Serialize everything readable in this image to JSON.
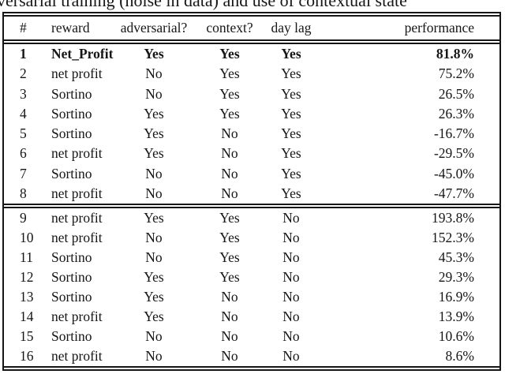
{
  "caption": {
    "visible_text": "versarial training (noise in data) and use of contextual state"
  },
  "table": {
    "headers": {
      "num": "#",
      "reward": "reward",
      "adversarial": "adversarial?",
      "context": "context?",
      "day_lag": "day lag",
      "performance": "performance"
    },
    "rows": [
      {
        "num": "1",
        "reward": "Net_Profit",
        "adversarial": "Yes",
        "context": "Yes",
        "day_lag": "Yes",
        "performance": "81.8%"
      },
      {
        "num": "2",
        "reward": "net profit",
        "adversarial": "No",
        "context": "Yes",
        "day_lag": "Yes",
        "performance": "75.2%"
      },
      {
        "num": "3",
        "reward": "Sortino",
        "adversarial": "No",
        "context": "Yes",
        "day_lag": "Yes",
        "performance": "26.5%"
      },
      {
        "num": "4",
        "reward": "Sortino",
        "adversarial": "Yes",
        "context": "Yes",
        "day_lag": "Yes",
        "performance": "26.3%"
      },
      {
        "num": "5",
        "reward": "Sortino",
        "adversarial": "Yes",
        "context": "No",
        "day_lag": "Yes",
        "performance": "-16.7%"
      },
      {
        "num": "6",
        "reward": "net profit",
        "adversarial": "Yes",
        "context": "No",
        "day_lag": "Yes",
        "performance": "-29.5%"
      },
      {
        "num": "7",
        "reward": "Sortino",
        "adversarial": "No",
        "context": "No",
        "day_lag": "Yes",
        "performance": "-45.0%"
      },
      {
        "num": "8",
        "reward": "net profit",
        "adversarial": "No",
        "context": "No",
        "day_lag": "Yes",
        "performance": "-47.7%"
      },
      {
        "num": "9",
        "reward": "net profit",
        "adversarial": "Yes",
        "context": "Yes",
        "day_lag": "No",
        "performance": "193.8%"
      },
      {
        "num": "10",
        "reward": "net profit",
        "adversarial": "No",
        "context": "Yes",
        "day_lag": "No",
        "performance": "152.3%"
      },
      {
        "num": "11",
        "reward": "Sortino",
        "adversarial": "No",
        "context": "Yes",
        "day_lag": "No",
        "performance": "45.3%"
      },
      {
        "num": "12",
        "reward": "Sortino",
        "adversarial": "Yes",
        "context": "Yes",
        "day_lag": "No",
        "performance": "29.3%"
      },
      {
        "num": "13",
        "reward": "Sortino",
        "adversarial": "Yes",
        "context": "No",
        "day_lag": "No",
        "performance": "16.9%"
      },
      {
        "num": "14",
        "reward": "net profit",
        "adversarial": "Yes",
        "context": "No",
        "day_lag": "No",
        "performance": "13.9%"
      },
      {
        "num": "15",
        "reward": "Sortino",
        "adversarial": "No",
        "context": "No",
        "day_lag": "No",
        "performance": "10.6%"
      },
      {
        "num": "16",
        "reward": "net profit",
        "adversarial": "No",
        "context": "No",
        "day_lag": "No",
        "performance": "8.6%"
      }
    ]
  }
}
